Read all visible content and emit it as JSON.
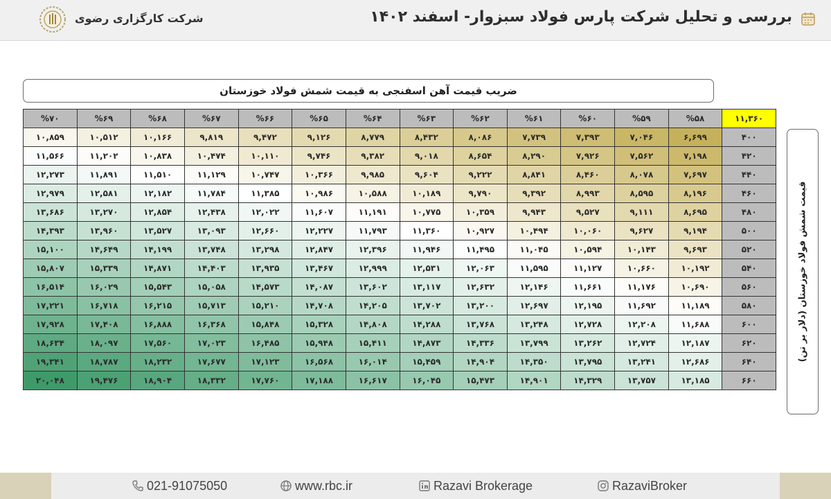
{
  "header": {
    "title": "بررسی و تحلیل شرکت پارس فولاد سبزوار- اسفند ۱۴۰۲",
    "company": "شرکت کارگزاری رضوی",
    "icon": "calendar-icon",
    "logo": "rbc-logo"
  },
  "table_title": "ضریب قیمت آهن اسفنجی به قیمت شمش فولاد خوزستان",
  "y_axis_label": "قیمت شمش فولاد خوزستان (دلار بر تن)",
  "corner_value": "۱۱,۳۶۰",
  "columns": [
    "%۵۸",
    "%۵۹",
    "%۶۰",
    "%۶۱",
    "%۶۲",
    "%۶۳",
    "%۶۴",
    "%۶۵",
    "%۶۶",
    "%۶۷",
    "%۶۸",
    "%۶۹",
    "%۷۰"
  ],
  "rows": [
    {
      "label": "۴۰۰",
      "cells": [
        "۶,۶۹۹",
        "۷,۰۴۶",
        "۷,۳۹۳",
        "۷,۷۳۹",
        "۸,۰۸۶",
        "۸,۴۳۲",
        "۸,۷۷۹",
        "۹,۱۲۶",
        "۹,۴۷۲",
        "۹,۸۱۹",
        "۱۰,۱۶۶",
        "۱۰,۵۱۲",
        "۱۰,۸۵۹"
      ]
    },
    {
      "label": "۴۲۰",
      "cells": [
        "۷,۱۹۸",
        "۷,۵۶۲",
        "۷,۹۲۶",
        "۸,۲۹۰",
        "۸,۶۵۴",
        "۹,۰۱۸",
        "۹,۳۸۲",
        "۹,۷۴۶",
        "۱۰,۱۱۰",
        "۱۰,۴۷۴",
        "۱۰,۸۳۸",
        "۱۱,۲۰۲",
        "۱۱,۵۶۶"
      ]
    },
    {
      "label": "۴۴۰",
      "cells": [
        "۷,۶۹۷",
        "۸,۰۷۸",
        "۸,۴۶۰",
        "۸,۸۴۱",
        "۹,۲۲۲",
        "۹,۶۰۴",
        "۹,۹۸۵",
        "۱۰,۳۶۶",
        "۱۰,۷۴۷",
        "۱۱,۱۲۹",
        "۱۱,۵۱۰",
        "۱۱,۸۹۱",
        "۱۲,۲۷۳"
      ]
    },
    {
      "label": "۴۶۰",
      "cells": [
        "۸,۱۹۶",
        "۸,۵۹۵",
        "۸,۹۹۳",
        "۹,۳۹۲",
        "۹,۷۹۰",
        "۱۰,۱۸۹",
        "۱۰,۵۸۸",
        "۱۰,۹۸۶",
        "۱۱,۳۸۵",
        "۱۱,۷۸۴",
        "۱۲,۱۸۲",
        "۱۲,۵۸۱",
        "۱۲,۹۷۹"
      ]
    },
    {
      "label": "۴۸۰",
      "cells": [
        "۸,۶۹۵",
        "۹,۱۱۱",
        "۹,۵۲۷",
        "۹,۹۴۳",
        "۱۰,۳۵۹",
        "۱۰,۷۷۵",
        "۱۱,۱۹۱",
        "۱۱,۶۰۷",
        "۱۲,۰۲۲",
        "۱۲,۴۳۸",
        "۱۲,۸۵۴",
        "۱۳,۲۷۰",
        "۱۳,۶۸۶"
      ]
    },
    {
      "label": "۵۰۰",
      "cells": [
        "۹,۱۹۴",
        "۹,۶۲۷",
        "۱۰,۰۶۰",
        "۱۰,۴۹۴",
        "۱۰,۹۲۷",
        "۱۱,۳۶۰",
        "۱۱,۷۹۳",
        "۱۲,۲۲۷",
        "۱۲,۶۶۰",
        "۱۳,۰۹۳",
        "۱۳,۵۲۷",
        "۱۳,۹۶۰",
        "۱۴,۳۹۳"
      ]
    },
    {
      "label": "۵۲۰",
      "cells": [
        "۹,۶۹۳",
        "۱۰,۱۴۳",
        "۱۰,۵۹۴",
        "۱۱,۰۴۵",
        "۱۱,۴۹۵",
        "۱۱,۹۴۶",
        "۱۲,۳۹۶",
        "۱۲,۸۴۷",
        "۱۳,۲۹۸",
        "۱۳,۷۴۸",
        "۱۴,۱۹۹",
        "۱۴,۶۴۹",
        "۱۵,۱۰۰"
      ]
    },
    {
      "label": "۵۴۰",
      "cells": [
        "۱۰,۱۹۲",
        "۱۰,۶۶۰",
        "۱۱,۱۲۷",
        "۱۱,۵۹۵",
        "۱۲,۰۶۳",
        "۱۲,۵۳۱",
        "۱۲,۹۹۹",
        "۱۳,۴۶۷",
        "۱۳,۹۳۵",
        "۱۴,۴۰۳",
        "۱۴,۸۷۱",
        "۱۵,۳۳۹",
        "۱۵,۸۰۷"
      ]
    },
    {
      "label": "۵۶۰",
      "cells": [
        "۱۰,۶۹۰",
        "۱۱,۱۷۶",
        "۱۱,۶۶۱",
        "۱۲,۱۴۶",
        "۱۲,۶۳۲",
        "۱۳,۱۱۷",
        "۱۳,۶۰۲",
        "۱۴,۰۸۷",
        "۱۴,۵۷۳",
        "۱۵,۰۵۸",
        "۱۵,۵۴۳",
        "۱۶,۰۲۹",
        "۱۶,۵۱۴"
      ]
    },
    {
      "label": "۵۸۰",
      "cells": [
        "۱۱,۱۸۹",
        "۱۱,۶۹۲",
        "۱۲,۱۹۵",
        "۱۲,۶۹۷",
        "۱۳,۲۰۰",
        "۱۳,۷۰۲",
        "۱۴,۲۰۵",
        "۱۴,۷۰۸",
        "۱۵,۲۱۰",
        "۱۵,۷۱۳",
        "۱۶,۲۱۵",
        "۱۶,۷۱۸",
        "۱۷,۲۲۱"
      ]
    },
    {
      "label": "۶۰۰",
      "cells": [
        "۱۱,۶۸۸",
        "۱۲,۲۰۸",
        "۱۲,۷۲۸",
        "۱۳,۲۴۸",
        "۱۳,۷۶۸",
        "۱۴,۲۸۸",
        "۱۴,۸۰۸",
        "۱۵,۳۲۸",
        "۱۵,۸۴۸",
        "۱۶,۳۶۸",
        "۱۶,۸۸۸",
        "۱۷,۴۰۸",
        "۱۷,۹۲۸"
      ]
    },
    {
      "label": "۶۲۰",
      "cells": [
        "۱۲,۱۸۷",
        "۱۲,۷۲۴",
        "۱۳,۲۶۲",
        "۱۳,۷۹۹",
        "۱۴,۳۳۶",
        "۱۴,۸۷۳",
        "۱۵,۴۱۱",
        "۱۵,۹۴۸",
        "۱۶,۴۸۵",
        "۱۷,۰۲۳",
        "۱۷,۵۶۰",
        "۱۸,۰۹۷",
        "۱۸,۶۳۴"
      ]
    },
    {
      "label": "۶۴۰",
      "cells": [
        "۱۲,۶۸۶",
        "۱۳,۲۴۱",
        "۱۳,۷۹۵",
        "۱۴,۳۵۰",
        "۱۴,۹۰۴",
        "۱۵,۴۵۹",
        "۱۶,۰۱۴",
        "۱۶,۵۶۸",
        "۱۷,۱۲۳",
        "۱۷,۶۷۷",
        "۱۸,۲۳۲",
        "۱۸,۷۸۷",
        "۱۹,۳۴۱"
      ]
    },
    {
      "label": "۶۶۰",
      "cells": [
        "۱۳,۱۸۵",
        "۱۳,۷۵۷",
        "۱۴,۳۲۹",
        "۱۴,۹۰۱",
        "۱۵,۴۷۳",
        "۱۶,۰۴۵",
        "۱۶,۶۱۷",
        "۱۷,۱۸۸",
        "۱۷,۷۶۰",
        "۱۸,۳۳۲",
        "۱۸,۹۰۴",
        "۱۹,۴۷۶",
        "۲۰,۰۴۸"
      ]
    }
  ],
  "color_scale": {
    "low": "#c6b15a",
    "mid": "#ffffff",
    "high": "#3f9a6a"
  },
  "footer": {
    "phone": "021-91075050",
    "website": "www.rbc.ir",
    "linkedin": "Razavi Brokerage",
    "instagram": "RazaviBroker"
  }
}
